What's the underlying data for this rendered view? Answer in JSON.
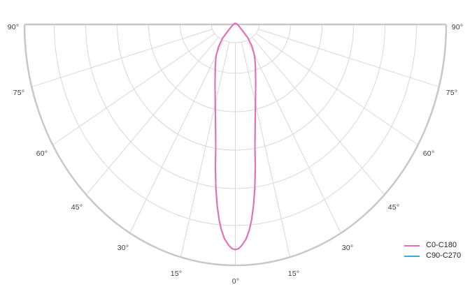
{
  "figure": {
    "kind": "photometric polar luminous-intensity distribution diagram",
    "background": "#ffffff"
  },
  "colors": {
    "boundary": "#c8c8c8",
    "grid": "#d8d8d8",
    "tick_text": "#3c3c3c",
    "legend_text": "#222222",
    "c0_c180": "#ee6cb4",
    "c90_c270": "#3aa7e8"
  },
  "chart_data": {
    "type": "line",
    "subtype": "polar-semicircle-photometric",
    "title": "",
    "angle_axis": {
      "unit": "degrees from nadir",
      "range_deg": [
        -90,
        90
      ],
      "tick_step_deg": 15
    },
    "radial_axis": {
      "labeled": false,
      "range": [
        0,
        1
      ],
      "rings": 6
    },
    "angle_ticks": [
      "90°",
      "75°",
      "60°",
      "45°",
      "30°",
      "15°",
      "0°",
      "15°",
      "30°",
      "45°",
      "60°",
      "75°",
      "90°"
    ],
    "series": [
      {
        "name": "C0-C180",
        "color": "#ee6cb4",
        "gamma_deg": [
          90,
          60,
          50,
          47,
          44,
          39,
          34,
          28,
          21,
          15.8,
          12.5,
          10.3,
          9,
          7.7,
          6.5,
          5.4,
          4.4,
          3.3,
          2,
          1,
          0
        ],
        "rel_intensity": [
          0,
          0.012,
          0.03,
          0.047,
          0.088,
          0.127,
          0.164,
          0.203,
          0.269,
          0.35,
          0.434,
          0.519,
          0.604,
          0.689,
          0.76,
          0.816,
          0.858,
          0.892,
          0.917,
          0.931,
          0.935
        ]
      },
      {
        "name": "C90-C270",
        "color": "#3aa7e8",
        "gamma_deg": [
          90,
          60,
          50,
          47,
          44,
          39,
          34,
          28,
          21,
          15.8,
          12.5,
          10.3,
          9,
          7.7,
          6.5,
          5.4,
          4.4,
          3.3,
          2,
          1,
          0
        ],
        "rel_intensity": [
          0,
          0.012,
          0.03,
          0.047,
          0.088,
          0.127,
          0.164,
          0.203,
          0.269,
          0.35,
          0.434,
          0.519,
          0.604,
          0.689,
          0.76,
          0.816,
          0.858,
          0.892,
          0.917,
          0.931,
          0.935
        ]
      }
    ],
    "legend": {
      "position": "bottom-right",
      "entries": [
        {
          "label": "C0-C180",
          "color": "#ee6cb4"
        },
        {
          "label": "C90-C270",
          "color": "#3aa7e8"
        }
      ]
    }
  }
}
